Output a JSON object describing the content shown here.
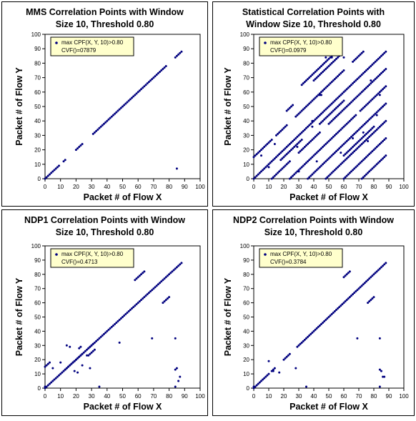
{
  "chart_data": [
    {
      "type": "scatter",
      "title_lines": [
        "MMS Correlation Points with Window",
        "Size 10, Threshold 0.80"
      ],
      "xlabel": "Packet # of Flow X",
      "ylabel": "Packet # of Flow Y",
      "xlim": [
        0,
        100
      ],
      "ylim": [
        0,
        100
      ],
      "xticks": [
        0,
        10,
        20,
        30,
        40,
        50,
        60,
        70,
        80,
        90,
        100
      ],
      "yticks": [
        0,
        10,
        20,
        30,
        40,
        50,
        60,
        70,
        80,
        90,
        100
      ],
      "legend": {
        "series_label": "max CPF(X, Y, 10)>0.80",
        "metric_label": "CVF()=07879",
        "placement": "top-left"
      },
      "point_color": "#00007f",
      "segments": [
        [
          1,
          9,
          0
        ],
        [
          12,
          13,
          0
        ],
        [
          20,
          24,
          0
        ],
        [
          31,
          78,
          0
        ],
        [
          84,
          88,
          0
        ]
      ],
      "points": [
        [
          0,
          0
        ],
        [
          85,
          7
        ]
      ]
    },
    {
      "type": "scatter",
      "title_lines": [
        "Statistical Correlation Points with",
        "Window Size 10, Threshold 0.80"
      ],
      "xlabel": "Packet # of Flow X",
      "ylabel": "Packet # of Flow Y",
      "xlim": [
        0,
        100
      ],
      "ylim": [
        0,
        100
      ],
      "xticks": [
        0,
        10,
        20,
        30,
        40,
        50,
        60,
        70,
        80,
        90,
        100
      ],
      "yticks": [
        0,
        10,
        20,
        30,
        40,
        50,
        60,
        70,
        80,
        90,
        100
      ],
      "legend": {
        "series_label": "max CPF(X, Y, 10)>0.80",
        "metric_label": "CVF()=0.0979",
        "placement": "top-left"
      },
      "point_color": "#00007f",
      "segments": [
        [
          0,
          88,
          0
        ],
        [
          0,
          12,
          15
        ],
        [
          15,
          22,
          15
        ],
        [
          28,
          60,
          15
        ],
        [
          66,
          73,
          15
        ],
        [
          24,
          68,
          -24
        ],
        [
          71,
          88,
          -24
        ],
        [
          12,
          24,
          -12
        ],
        [
          30,
          44,
          -12
        ],
        [
          50,
          88,
          -12
        ],
        [
          36,
          88,
          -36
        ],
        [
          48,
          88,
          -48
        ],
        [
          60,
          88,
          -60
        ],
        [
          70,
          88,
          -72
        ],
        [
          22,
          26,
          25
        ],
        [
          32,
          52,
          33
        ],
        [
          40,
          58,
          28
        ],
        [
          18,
          32,
          -5
        ],
        [
          44,
          60,
          -6
        ],
        [
          60,
          80,
          -44
        ]
      ],
      "points": [
        [
          39,
          40
        ],
        [
          39,
          36
        ],
        [
          44,
          58
        ],
        [
          45,
          58
        ],
        [
          48,
          84
        ],
        [
          50,
          86
        ],
        [
          52,
          84
        ],
        [
          56,
          86
        ],
        [
          60,
          84
        ],
        [
          29,
          22
        ],
        [
          14,
          24
        ],
        [
          10,
          8
        ],
        [
          5,
          16
        ],
        [
          30,
          5
        ],
        [
          42,
          12
        ],
        [
          58,
          18
        ],
        [
          66,
          28
        ],
        [
          73,
          32
        ],
        [
          76,
          26
        ],
        [
          82,
          44
        ],
        [
          86,
          50
        ],
        [
          84,
          58
        ],
        [
          78,
          68
        ]
      ]
    },
    {
      "type": "scatter",
      "title_lines": [
        "NDP1 Correlation Points with Window",
        "Size 10, Threshold 0.80"
      ],
      "xlabel": "Packet # of Flow X",
      "ylabel": "Packet # of Flow Y",
      "xlim": [
        0,
        100
      ],
      "ylim": [
        0,
        100
      ],
      "xticks": [
        0,
        10,
        20,
        30,
        40,
        50,
        60,
        70,
        80,
        90,
        100
      ],
      "yticks": [
        0,
        10,
        20,
        30,
        40,
        50,
        60,
        70,
        80,
        90,
        100
      ],
      "legend": {
        "series_label": "max CPF(X, Y, 10)>0.80",
        "metric_label": "CVF()=0.4713",
        "placement": "top-left"
      },
      "point_color": "#00007f",
      "segments": [
        [
          0,
          88,
          0
        ],
        [
          0,
          3,
          15
        ],
        [
          13,
          19,
          0
        ],
        [
          20,
          24,
          0
        ],
        [
          28,
          31,
          0
        ],
        [
          76,
          80,
          -16
        ],
        [
          58,
          64,
          18
        ],
        [
          28,
          32,
          -5
        ]
      ],
      "points": [
        [
          0,
          1
        ],
        [
          14,
          30
        ],
        [
          16,
          29
        ],
        [
          19,
          12
        ],
        [
          21,
          11
        ],
        [
          22,
          28
        ],
        [
          23,
          29
        ],
        [
          24,
          16
        ],
        [
          27,
          23
        ],
        [
          29,
          14
        ],
        [
          35,
          1
        ],
        [
          48,
          32
        ],
        [
          69,
          35
        ],
        [
          84,
          35
        ],
        [
          84,
          13
        ],
        [
          85,
          14
        ],
        [
          84,
          1
        ],
        [
          86,
          5
        ],
        [
          87,
          8
        ],
        [
          10,
          18
        ],
        [
          5,
          14
        ]
      ]
    },
    {
      "type": "scatter",
      "title_lines": [
        "NDP2 Correlation Points with Window",
        "Size 10, Threshold 0.80"
      ],
      "xlabel": "Packet # of Flow X",
      "ylabel": "Packet # of Flow Y",
      "xlim": [
        0,
        100
      ],
      "ylim": [
        0,
        100
      ],
      "xticks": [
        0,
        10,
        20,
        30,
        40,
        50,
        60,
        70,
        80,
        90,
        100
      ],
      "yticks": [
        0,
        10,
        20,
        30,
        40,
        50,
        60,
        70,
        80,
        90,
        100
      ],
      "legend": {
        "series_label": "max CPF(X, Y, 10)>0.80",
        "metric_label": "CVF()=0.3784",
        "placement": "top-left"
      },
      "point_color": "#00007f",
      "segments": [
        [
          0,
          10,
          0
        ],
        [
          12,
          14,
          0
        ],
        [
          20,
          24,
          0
        ],
        [
          29,
          88,
          0
        ],
        [
          60,
          64,
          18
        ],
        [
          76,
          80,
          -16
        ]
      ],
      "points": [
        [
          0,
          1
        ],
        [
          10,
          19
        ],
        [
          13,
          12
        ],
        [
          17,
          11
        ],
        [
          28,
          14
        ],
        [
          35,
          1
        ],
        [
          69,
          35
        ],
        [
          84,
          35
        ],
        [
          84,
          13
        ],
        [
          85,
          12
        ],
        [
          86,
          8
        ],
        [
          87,
          8
        ],
        [
          84,
          1
        ]
      ]
    }
  ]
}
